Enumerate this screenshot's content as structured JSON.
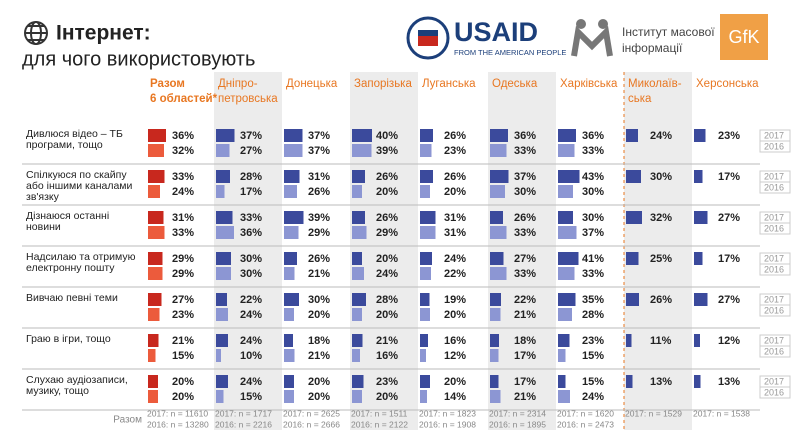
{
  "chart_data": {
    "type": "bar-table",
    "title": "Інтернет:",
    "subtitle": "для чого використовують",
    "logos": [
      "USAID",
      "FROM THE AMERICAN PEOPLE",
      "Інститут масової",
      "інформації",
      "GfK"
    ],
    "sample_label": "Разом",
    "categories": [
      "Дивлюся відео – ТБ програми, тощо",
      "Спілкуюся по скайпу або іншими каналами зв'язку",
      "Дізнаюся останні новини",
      "Надсилаю та отримую електронну пошту",
      "Вивчаю певні теми",
      "Граю в ігри, тощо",
      "Слухаю аудіозаписи, музику, тощо"
    ],
    "groups": [
      {
        "name": "Разом 6 областей*",
        "sample": [
          "2017: n = 11610",
          "2016: n = 13280"
        ],
        "series": [
          {
            "name": "2017",
            "color": "#c8281e",
            "values": [
              36,
              33,
              31,
              29,
              27,
              21,
              20
            ],
            "value_labels": [
              "36%",
              "33%",
              "31%",
              "29%",
              "27%",
              "21%",
              "20%"
            ]
          },
          {
            "name": "2016",
            "color": "#ec5b3c",
            "values": [
              32,
              24,
              33,
              29,
              23,
              15,
              20
            ],
            "value_labels": [
              "32%",
              "24%",
              "33%",
              "29%",
              "23%",
              "15%",
              "20%"
            ]
          }
        ]
      },
      {
        "name": "Дніпро-петровська",
        "sample": [
          "2017: n = 1717",
          "2016: n = 2216"
        ],
        "series": [
          {
            "name": "2017",
            "color": "#3b4a9c",
            "values": [
              37,
              28,
              33,
              30,
              22,
              24,
              24
            ],
            "value_labels": [
              "37%",
              "28%",
              "33%",
              "30%",
              "22%",
              "24%",
              "24%"
            ]
          },
          {
            "name": "2016",
            "color": "#8c96d3",
            "values": [
              27,
              17,
              36,
              30,
              24,
              10,
              15
            ],
            "value_labels": [
              "27%",
              "17%",
              "36%",
              "30%",
              "24%",
              "10%",
              "15%"
            ]
          }
        ]
      },
      {
        "name": "Донецька",
        "sample": [
          "2017: n = 2625",
          "2016: n = 2666"
        ],
        "series": [
          {
            "name": "2017",
            "color": "#3b4a9c",
            "values": [
              37,
              31,
              39,
              26,
              30,
              18,
              20
            ],
            "value_labels": [
              "37%",
              "31%",
              "39%",
              "26%",
              "30%",
              "18%",
              "20%"
            ]
          },
          {
            "name": "2016",
            "color": "#8c96d3",
            "values": [
              37,
              26,
              29,
              21,
              20,
              21,
              20
            ],
            "value_labels": [
              "37%",
              "26%",
              "29%",
              "21%",
              "20%",
              "21%",
              "20%"
            ]
          }
        ]
      },
      {
        "name": "Запорізька",
        "sample": [
          "2017: n = 1511",
          "2016: n = 2122"
        ],
        "series": [
          {
            "name": "2017",
            "color": "#3b4a9c",
            "values": [
              40,
              26,
              26,
              20,
              28,
              21,
              23
            ],
            "value_labels": [
              "40%",
              "26%",
              "26%",
              "20%",
              "28%",
              "21%",
              "23%"
            ]
          },
          {
            "name": "2016",
            "color": "#8c96d3",
            "values": [
              39,
              20,
              29,
              24,
              20,
              16,
              20
            ],
            "value_labels": [
              "39%",
              "20%",
              "29%",
              "24%",
              "20%",
              "16%",
              "20%"
            ]
          }
        ]
      },
      {
        "name": "Луганська",
        "sample": [
          "2017: n = 1823",
          "2016: n = 1908"
        ],
        "series": [
          {
            "name": "2017",
            "color": "#3b4a9c",
            "values": [
              26,
              26,
              31,
              24,
              19,
              16,
              20
            ],
            "value_labels": [
              "26%",
              "26%",
              "31%",
              "24%",
              "19%",
              "16%",
              "20%"
            ]
          },
          {
            "name": "2016",
            "color": "#8c96d3",
            "values": [
              23,
              20,
              31,
              22,
              20,
              12,
              14
            ],
            "value_labels": [
              "23%",
              "20%",
              "31%",
              "22%",
              "20%",
              "12%",
              "14%"
            ]
          }
        ]
      },
      {
        "name": "Одеська",
        "sample": [
          "2017: n = 2314",
          "2016: n = 1895"
        ],
        "series": [
          {
            "name": "2017",
            "color": "#3b4a9c",
            "values": [
              36,
              37,
              26,
              27,
              22,
              18,
              17
            ],
            "value_labels": [
              "36%",
              "37%",
              "26%",
              "27%",
              "22%",
              "18%",
              "17%"
            ]
          },
          {
            "name": "2016",
            "color": "#8c96d3",
            "values": [
              33,
              30,
              33,
              33,
              21,
              17,
              21
            ],
            "value_labels": [
              "33%",
              "30%",
              "33%",
              "33%",
              "21%",
              "17%",
              "21%"
            ]
          }
        ]
      },
      {
        "name": "Харківська",
        "sample": [
          "2017: n = 1620",
          "2016: n = 2473"
        ],
        "series": [
          {
            "name": "2017",
            "color": "#3b4a9c",
            "values": [
              36,
              43,
              30,
              41,
              35,
              23,
              15
            ],
            "value_labels": [
              "36%",
              "43%",
              "30%",
              "41%",
              "35%",
              "23%",
              "15%"
            ]
          },
          {
            "name": "2016",
            "color": "#8c96d3",
            "values": [
              33,
              30,
              37,
              33,
              28,
              15,
              24
            ],
            "value_labels": [
              "33%",
              "30%",
              "37%",
              "33%",
              "28%",
              "15%",
              "24%"
            ]
          }
        ]
      },
      {
        "name": "Миколаїв-ська",
        "sample": [
          "2017: n = 1529"
        ],
        "series": [
          {
            "name": "2017",
            "color": "#3b4a9c",
            "values": [
              24,
              30,
              32,
              25,
              26,
              11,
              13
            ],
            "value_labels": [
              "24%",
              "30%",
              "32%",
              "25%",
              "26%",
              "11%",
              "13%"
            ]
          }
        ]
      },
      {
        "name": "Херсонська",
        "sample": [
          "2017: n = 1538"
        ],
        "series": [
          {
            "name": "2017",
            "color": "#3b4a9c",
            "values": [
              23,
              17,
              27,
              17,
              27,
              12,
              13
            ],
            "value_labels": [
              "23%",
              "17%",
              "27%",
              "17%",
              "27%",
              "12%",
              "13%"
            ]
          }
        ]
      }
    ]
  }
}
